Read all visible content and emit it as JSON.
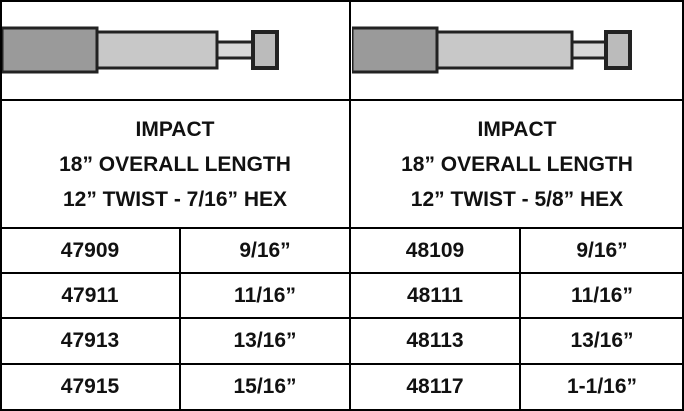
{
  "products": [
    {
      "header": {
        "lines": [
          "IMPACT",
          "18” OVERALL LENGTH",
          "12” TWIST - 7/16” HEX"
        ]
      },
      "rows": [
        [
          "47909",
          "9/16”"
        ],
        [
          "47911",
          "11/16”"
        ],
        [
          "47913",
          "13/16”"
        ],
        [
          "47915",
          "15/16”"
        ]
      ]
    },
    {
      "header": {
        "lines": [
          "IMPACT",
          "18” OVERALL LENGTH",
          "12” TWIST - 5/8” HEX"
        ]
      },
      "rows": [
        [
          "48109",
          "9/16”"
        ],
        [
          "48111",
          "11/16”"
        ],
        [
          "48113",
          "13/16”"
        ],
        [
          "48117",
          "1-1/16”"
        ]
      ]
    }
  ]
}
